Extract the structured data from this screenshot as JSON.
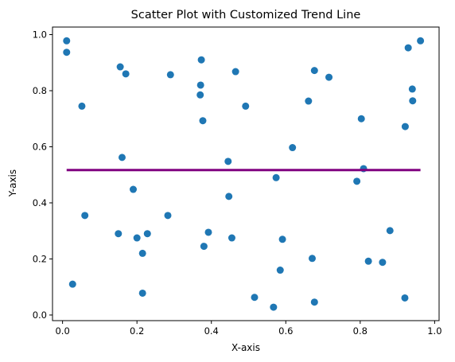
{
  "chart_data": {
    "type": "scatter",
    "title": "Scatter Plot with Customized Trend Line",
    "xlabel": "X-axis",
    "ylabel": "Y-axis",
    "xlim": [
      -0.027,
      1.012
    ],
    "ylim": [
      -0.02,
      1.027
    ],
    "xticks": [
      0.0,
      0.2,
      0.4,
      0.6,
      0.8,
      1.0
    ],
    "xtick_labels": [
      "0.0",
      "0.2",
      "0.4",
      "0.6",
      "0.8",
      "1.0"
    ],
    "yticks": [
      0.0,
      0.2,
      0.4,
      0.6,
      0.8,
      1.0
    ],
    "ytick_labels": [
      "0.0",
      "0.2",
      "0.4",
      "0.6",
      "0.8",
      "1.0"
    ],
    "grid": false,
    "colors": {
      "points": "#1f77b4",
      "trend_line": "#800080"
    },
    "series": [
      {
        "kind": "points",
        "x": [
          0.011,
          0.011,
          0.027,
          0.052,
          0.06,
          0.15,
          0.155,
          0.16,
          0.17,
          0.19,
          0.2,
          0.215,
          0.215,
          0.228,
          0.283,
          0.29,
          0.37,
          0.371,
          0.373,
          0.377,
          0.38,
          0.392,
          0.445,
          0.447,
          0.455,
          0.465,
          0.492,
          0.516,
          0.567,
          0.574,
          0.585,
          0.591,
          0.618,
          0.661,
          0.671,
          0.677,
          0.677,
          0.716,
          0.791,
          0.803,
          0.809,
          0.822,
          0.86,
          0.88,
          0.92,
          0.921,
          0.929,
          0.94,
          0.941,
          0.962
        ],
        "y": [
          0.978,
          0.937,
          0.11,
          0.745,
          0.355,
          0.29,
          0.885,
          0.562,
          0.86,
          0.448,
          0.275,
          0.22,
          0.078,
          0.29,
          0.355,
          0.857,
          0.785,
          0.82,
          0.91,
          0.693,
          0.245,
          0.295,
          0.548,
          0.423,
          0.275,
          0.868,
          0.745,
          0.063,
          0.028,
          0.49,
          0.16,
          0.27,
          0.597,
          0.763,
          0.202,
          0.046,
          0.872,
          0.848,
          0.477,
          0.7,
          0.522,
          0.192,
          0.188,
          0.301,
          0.061,
          0.672,
          0.953,
          0.806,
          0.764,
          0.978
        ]
      },
      {
        "kind": "trend_line",
        "x": [
          0.011,
          0.962
        ],
        "y": [
          0.517,
          0.517
        ]
      }
    ]
  }
}
